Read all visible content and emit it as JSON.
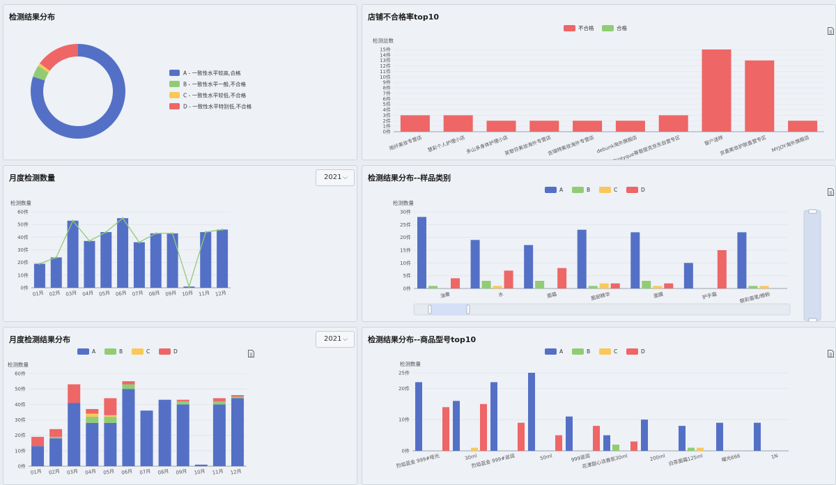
{
  "panels": {
    "donut": {
      "title": "检测结果分布"
    },
    "store": {
      "title": "店铺不合格率top10"
    },
    "monthly": {
      "title": "月度检测数量",
      "year": "2021"
    },
    "category": {
      "title": "检测结果分布--样品类别"
    },
    "monthlyResult": {
      "title": "月度检测结果分布",
      "year": "2021"
    },
    "model": {
      "title": "检测结果分布--商品型号top10"
    }
  },
  "colors": {
    "A": "#5470c6",
    "B": "#91cc75",
    "C": "#fac858",
    "D": "#ee6666",
    "line": "#91cc75"
  },
  "chart_data": [
    {
      "id": "donut",
      "type": "pie",
      "slices": [
        {
          "label": "A - 一致性水平较高,合格",
          "value": 80
        },
        {
          "label": "B - 一致性水平一般,不合格",
          "value": 4
        },
        {
          "label": "C - 一致性水平较低,不合格",
          "value": 1
        },
        {
          "label": "D - 一致性水平特别低,不合格",
          "value": 15
        }
      ]
    },
    {
      "id": "store",
      "type": "bar",
      "ylabel": "检测总数",
      "legend": [
        "不合格",
        "合格"
      ],
      "ylim": [
        0,
        15
      ],
      "yticks": [
        "0件",
        "1件",
        "2件",
        "3件",
        "4件",
        "5件",
        "6件",
        "7件",
        "8件",
        "9件",
        "10件",
        "11件",
        "12件",
        "13件",
        "14件",
        "15件"
      ],
      "categories": [
        "雨纤美妆专营店",
        "慧彩个人护理小店",
        "多山多身体护理小店",
        "芙黎芬美妆海外专营店",
        "吉瑞特美妆海外专营店",
        "debunk海外旗舰店",
        "Diptyque蒂普提克京东自营专区",
        "窗户送样",
        "京喜美妆护肤直营专区",
        "MYJOY海外旗舰店"
      ],
      "series": [
        {
          "name": "不合格",
          "values": [
            3,
            3,
            2,
            2,
            2,
            2,
            3,
            15,
            13,
            2
          ]
        }
      ]
    },
    {
      "id": "monthly",
      "type": "bar",
      "ylabel": "检测数量",
      "ylim": [
        0,
        60
      ],
      "yticks": [
        "0件",
        "10件",
        "20件",
        "30件",
        "40件",
        "50件",
        "60件"
      ],
      "categories": [
        "01月",
        "02月",
        "03月",
        "04月",
        "05月",
        "06月",
        "07月",
        "08月",
        "09月",
        "10月",
        "11月",
        "12月"
      ],
      "values": [
        19,
        24,
        53,
        37,
        44,
        55,
        36,
        43,
        43,
        1,
        44,
        46
      ]
    },
    {
      "id": "category",
      "type": "bar",
      "ylabel": "检测数量",
      "legend": [
        "A",
        "B",
        "C",
        "D"
      ],
      "ylim": [
        0,
        30
      ],
      "yticks": [
        "0件",
        "5件",
        "10件",
        "15件",
        "20件",
        "25件",
        "30件"
      ],
      "categories": [
        "油膏",
        "水",
        "面霜",
        "面部精华",
        "面膜",
        "护手霜",
        "眼彩眉笔/眼粉"
      ],
      "series": [
        {
          "name": "A",
          "values": [
            28,
            19,
            17,
            23,
            22,
            10,
            22
          ]
        },
        {
          "name": "B",
          "values": [
            1,
            3,
            3,
            1,
            3,
            0,
            1
          ]
        },
        {
          "name": "C",
          "values": [
            0,
            1,
            0,
            2,
            1,
            0,
            1
          ]
        },
        {
          "name": "D",
          "values": [
            4,
            7,
            8,
            2,
            2,
            15,
            0
          ]
        }
      ]
    },
    {
      "id": "monthlyResult",
      "type": "bar",
      "stacked": true,
      "ylabel": "检测数量",
      "legend": [
        "A",
        "B",
        "C",
        "D"
      ],
      "ylim": [
        0,
        60
      ],
      "yticks": [
        "0件",
        "10件",
        "20件",
        "30件",
        "40件",
        "50件",
        "60件"
      ],
      "categories": [
        "01月",
        "02月",
        "03月",
        "04月",
        "05月",
        "06月",
        "07月",
        "08月",
        "09月",
        "10月",
        "11月",
        "12月"
      ],
      "series": [
        {
          "name": "A",
          "values": [
            13,
            18,
            41,
            28,
            28,
            50,
            36,
            43,
            40,
            1,
            40,
            44
          ]
        },
        {
          "name": "B",
          "values": [
            0,
            1,
            0,
            4,
            4,
            3,
            0,
            0,
            2,
            0,
            2,
            1
          ]
        },
        {
          "name": "C",
          "values": [
            0,
            0,
            0,
            2,
            1,
            0,
            0,
            0,
            0,
            0,
            0,
            0
          ]
        },
        {
          "name": "D",
          "values": [
            6,
            5,
            12,
            3,
            11,
            2,
            0,
            0,
            1,
            0,
            2,
            1
          ]
        }
      ]
    },
    {
      "id": "model",
      "type": "bar",
      "ylabel": "检测数量",
      "legend": [
        "A",
        "B",
        "C",
        "D"
      ],
      "ylim": [
        0,
        25
      ],
      "yticks": [
        "0件",
        "10件",
        "20件",
        "25件"
      ],
      "categories": [
        "烈焰蓝金 999#哑光",
        "30ml",
        "烈焰蓝金 999#滋润",
        "50ml",
        "999滋润",
        "花漾甜心淡香氛30ml",
        "200ml",
        "白茶面霜125ml",
        "曜光666",
        "1N"
      ],
      "series": [
        {
          "name": "A",
          "values": [
            22,
            16,
            22,
            25,
            11,
            5,
            10,
            8,
            9,
            9
          ]
        },
        {
          "name": "B",
          "values": [
            0,
            0,
            0,
            0,
            0,
            2,
            0,
            1,
            0,
            0
          ]
        },
        {
          "name": "C",
          "values": [
            0,
            1,
            0,
            0,
            0,
            0,
            0,
            1,
            0,
            0
          ]
        },
        {
          "name": "D",
          "values": [
            14,
            15,
            9,
            5,
            8,
            3,
            0,
            0,
            0,
            0
          ]
        }
      ]
    }
  ]
}
